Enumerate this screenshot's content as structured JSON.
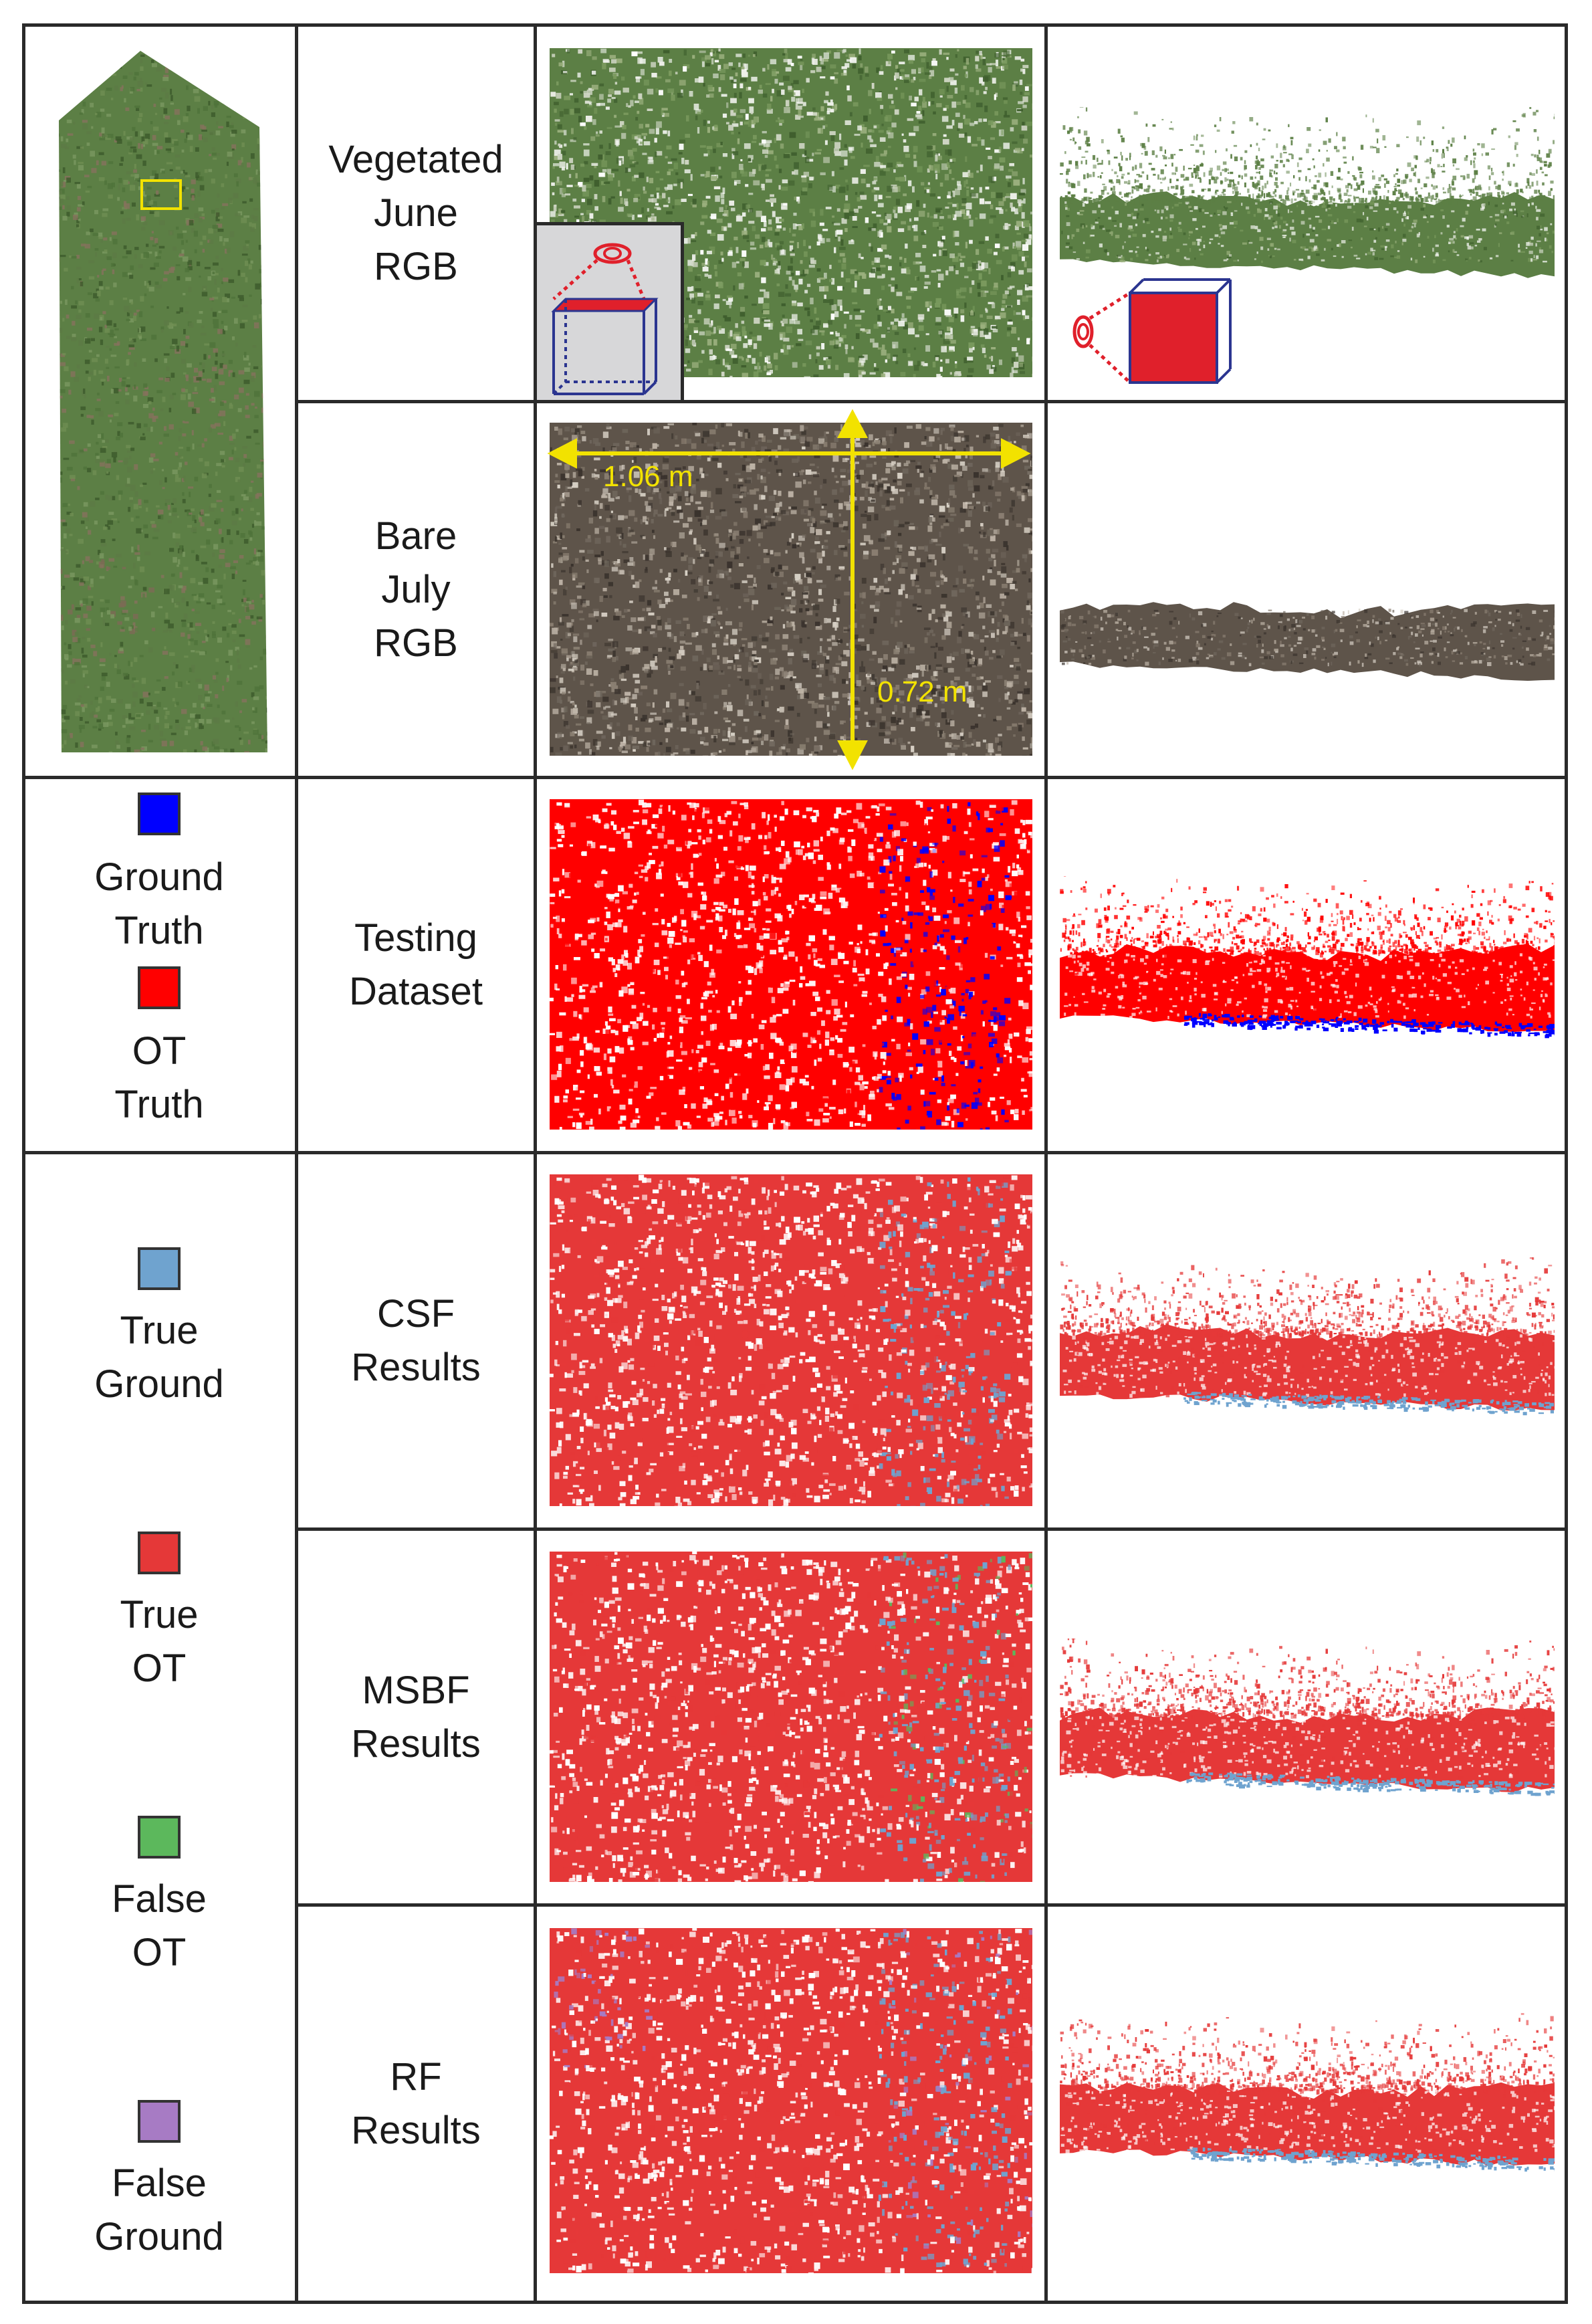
{
  "rows": [
    {
      "id": "vegetated",
      "lines": [
        "Vegetated",
        "June",
        "RGB"
      ]
    },
    {
      "id": "bare",
      "lines": [
        "Bare",
        "July",
        "RGB"
      ]
    },
    {
      "id": "testing",
      "lines": [
        "Testing",
        "Dataset"
      ]
    },
    {
      "id": "csf",
      "lines": [
        "CSF",
        "Results"
      ]
    },
    {
      "id": "msbf",
      "lines": [
        "MSBF",
        "Results"
      ]
    },
    {
      "id": "rf",
      "lines": [
        "RF",
        "Results"
      ]
    }
  ],
  "legend_truth": [
    {
      "id": "ground-truth",
      "lines": [
        "Ground",
        "Truth"
      ],
      "color": "#0000ff"
    },
    {
      "id": "ot-truth",
      "lines": [
        "OT",
        "Truth"
      ],
      "color": "#ff0000"
    }
  ],
  "legend_results": [
    {
      "id": "true-ground",
      "lines": [
        "True",
        "Ground"
      ],
      "color": "#6fa3cf"
    },
    {
      "id": "true-ot",
      "lines": [
        "True",
        "OT"
      ],
      "color": "#e53838"
    },
    {
      "id": "false-ot",
      "lines": [
        "False",
        "OT"
      ],
      "color": "#5cb85c"
    },
    {
      "id": "false-ground",
      "lines": [
        "False",
        "Ground"
      ],
      "color": "#a77bc4"
    }
  ],
  "measurements": {
    "width": "1.06 m",
    "height": "0.72 m"
  },
  "colors": {
    "grass": "#5c7f45",
    "soil": "#5e544a",
    "highlight": "#f2e200",
    "camera": "#e0202b",
    "cube_edge": "#2b3590"
  }
}
